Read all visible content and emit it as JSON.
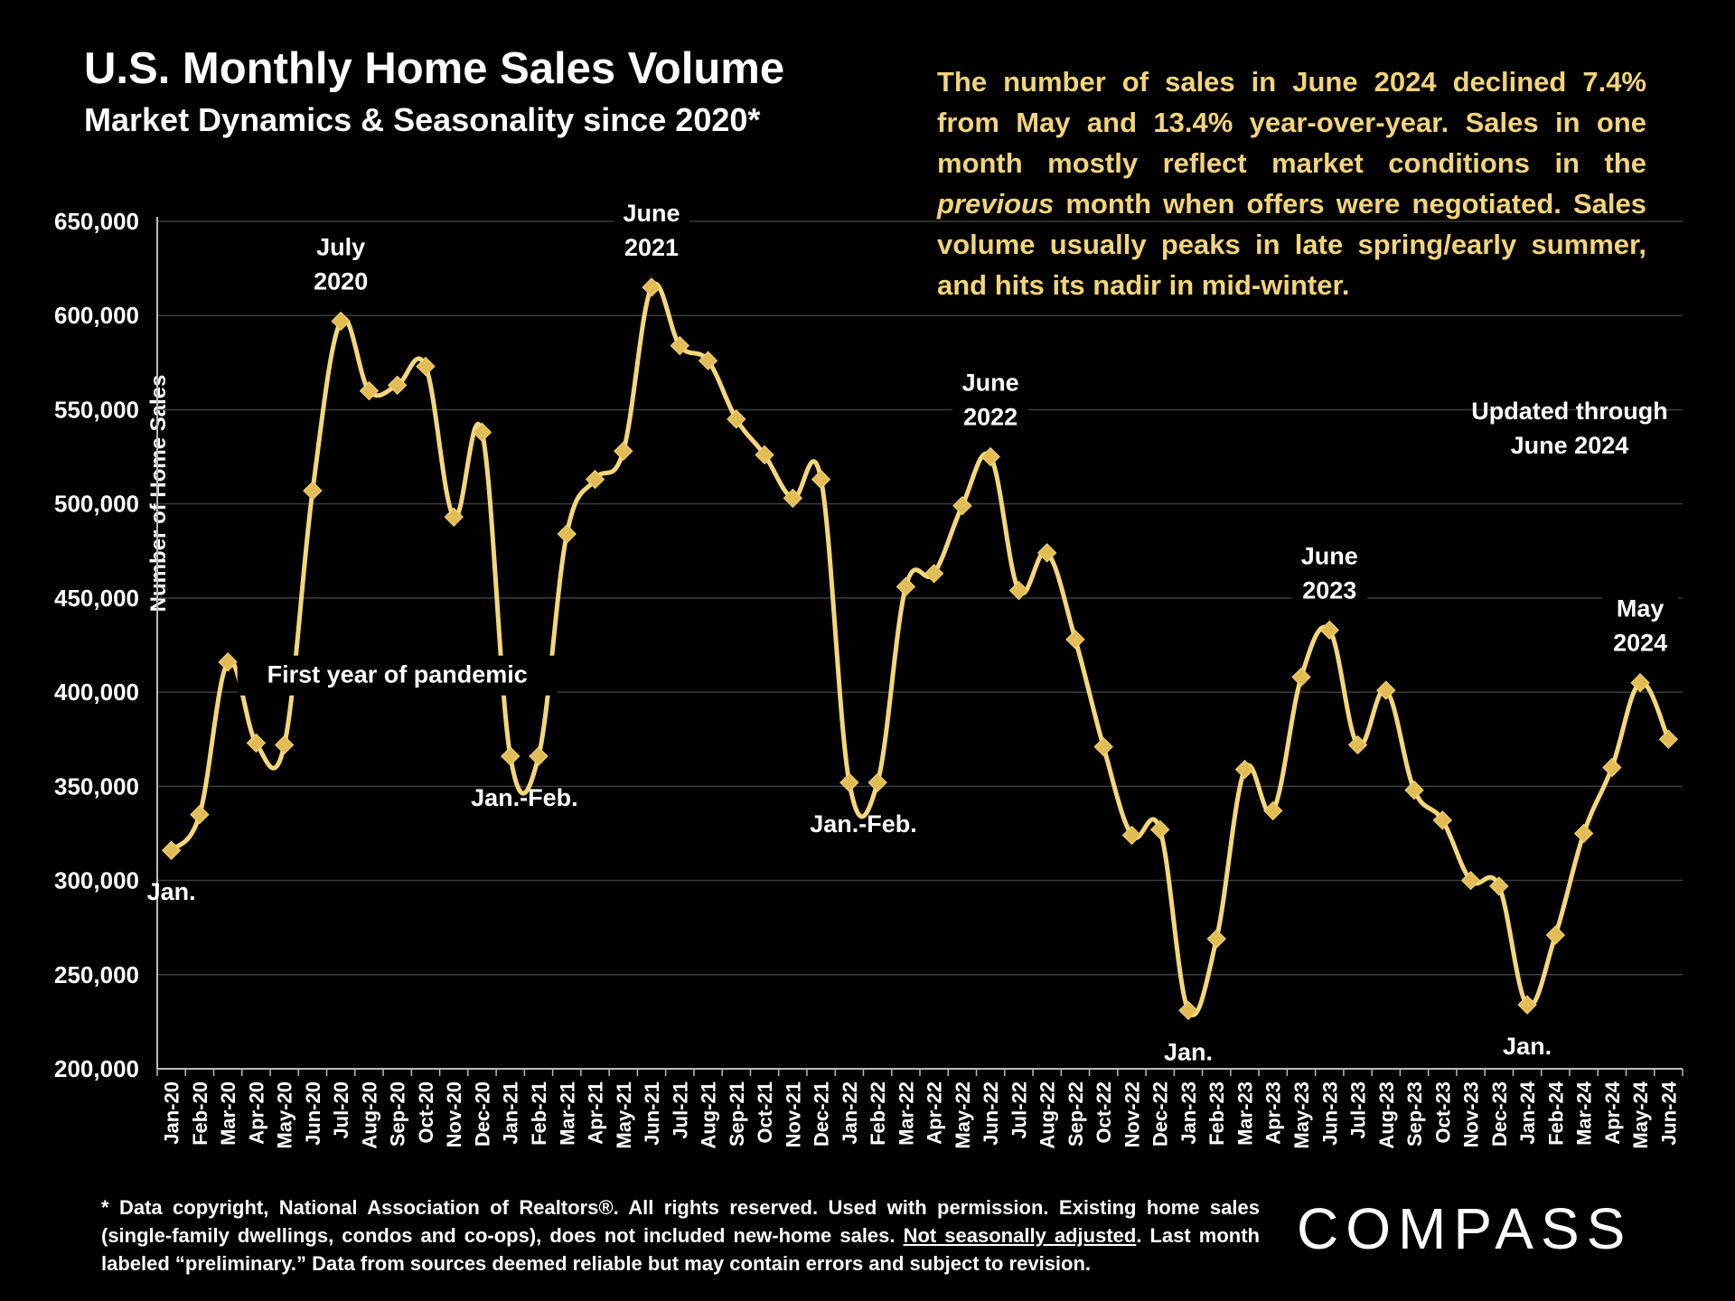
{
  "header": {
    "title": "U.S. Monthly Home Sales Volume",
    "subtitle": "Market Dynamics & Seasonality since 2020*"
  },
  "note": {
    "part1": "The number of sales in June 2024 declined 7.4% from May and 13.4% year-over-year. Sales in one month mostly reflect market conditions in the ",
    "emphasis": "previous",
    "part2": " month when offers were negotiated. Sales volume usually peaks in late spring/early summer, and hits its nadir in mid-winter."
  },
  "footnote": {
    "part1": "* Data copyright, National Association of Realtors®. All rights reserved. Used with permission. Existing home sales (single-family dwellings, condos and co-ops), does not included new-home sales. ",
    "underlined": "Not seasonally adjusted",
    "part2": ". Last month labeled “preliminary.” Data from sources deemed reliable but may contain errors and subject to revision."
  },
  "logo": {
    "text": "COMPASS"
  },
  "colors": {
    "line": "#f5d77b",
    "marker": "#e2bd55",
    "background": "#000000",
    "grid": "#3c3c3c",
    "note": "#f2d47a"
  },
  "chart_data": {
    "type": "line",
    "title": "U.S. Monthly Home Sales Volume",
    "subtitle": "Market Dynamics & Seasonality since 2020*",
    "ylabel": "Number of Home Sales",
    "xlabel": "",
    "ylim": [
      200000,
      650000
    ],
    "yticks": [
      200000,
      250000,
      300000,
      350000,
      400000,
      450000,
      500000,
      550000,
      600000,
      650000
    ],
    "ytick_labels": [
      "200,000",
      "250,000",
      "300,000",
      "350,000",
      "400,000",
      "450,000",
      "500,000",
      "550,000",
      "600,000",
      "650,000"
    ],
    "grid": true,
    "categories": [
      "Jan-20",
      "Feb-20",
      "Mar-20",
      "Apr-20",
      "May-20",
      "Jun-20",
      "Jul-20",
      "Aug-20",
      "Sep-20",
      "Oct-20",
      "Nov-20",
      "Dec-20",
      "Jan-21",
      "Feb-21",
      "Mar-21",
      "Apr-21",
      "May-21",
      "Jun-21",
      "Jul-21",
      "Aug-21",
      "Sep-21",
      "Oct-21",
      "Nov-21",
      "Dec-21",
      "Jan-22",
      "Feb-22",
      "Mar-22",
      "Apr-22",
      "May-22",
      "Jun-22",
      "Jul-22",
      "Aug-22",
      "Sep-22",
      "Oct-22",
      "Nov-22",
      "Dec-22",
      "Jan-23",
      "Feb-23",
      "Mar-23",
      "Apr-23",
      "May-23",
      "Jun-23",
      "Jul-23",
      "Aug-23",
      "Sep-23",
      "Oct-23",
      "Nov-23",
      "Dec-23",
      "Jan-24",
      "Feb-24",
      "Mar-24",
      "Apr-24",
      "May-24",
      "Jun-24"
    ],
    "values": [
      316000,
      335000,
      416000,
      373000,
      372000,
      507000,
      597000,
      560000,
      563000,
      573000,
      493000,
      538000,
      366000,
      366000,
      484000,
      513000,
      528000,
      615000,
      584000,
      576000,
      545000,
      526000,
      503000,
      513000,
      352000,
      352000,
      456000,
      463000,
      499000,
      525000,
      454000,
      474000,
      428000,
      371000,
      324000,
      327000,
      231000,
      269000,
      359000,
      337000,
      408000,
      433000,
      372000,
      401000,
      348000,
      332000,
      300000,
      297000,
      234000,
      271000,
      325000,
      360000,
      405000,
      375000
    ],
    "annotations": [
      {
        "lines": [
          "Jan."
        ],
        "index": 0,
        "pos": "below"
      },
      {
        "lines": [
          "July",
          "2020"
        ],
        "index": 6,
        "pos": "above"
      },
      {
        "lines": [
          "First year of pandemic"
        ],
        "index": 8,
        "pos": "band"
      },
      {
        "lines": [
          "Jan.-Feb."
        ],
        "index": 12.5,
        "pos": "below"
      },
      {
        "lines": [
          "June",
          "2021"
        ],
        "index": 17,
        "pos": "above"
      },
      {
        "lines": [
          "Jan.-Feb."
        ],
        "index": 24.5,
        "pos": "below"
      },
      {
        "lines": [
          "June",
          "2022"
        ],
        "index": 29,
        "pos": "above"
      },
      {
        "lines": [
          "Jan."
        ],
        "index": 36,
        "pos": "below"
      },
      {
        "lines": [
          "June",
          "2023"
        ],
        "index": 41,
        "pos": "above"
      },
      {
        "lines": [
          "Jan."
        ],
        "index": 48,
        "pos": "below"
      },
      {
        "lines": [
          "May",
          "2024"
        ],
        "index": 52,
        "pos": "above"
      },
      {
        "lines": [
          "Updated through",
          "June 2024"
        ],
        "index": 49.5,
        "pos": "free"
      }
    ]
  }
}
